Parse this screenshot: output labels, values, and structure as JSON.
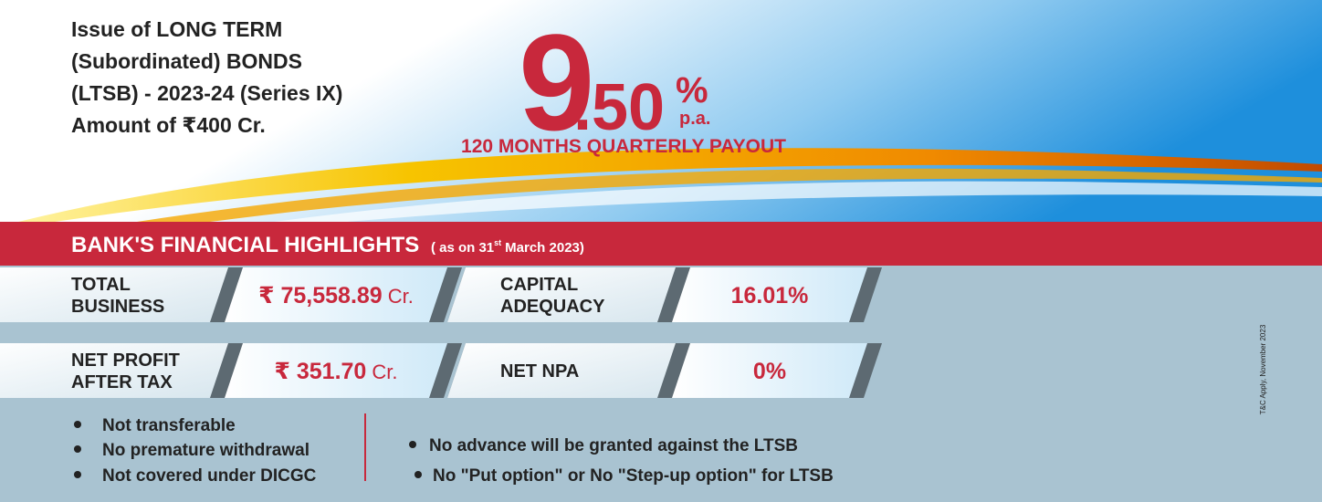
{
  "header": {
    "lines": [
      "Issue of LONG TERM",
      "(Subordinated) BONDS",
      "(LTSB) - 2023-24 (Series IX)",
      "Amount of ₹400 Cr."
    ]
  },
  "rate": {
    "whole": "9",
    "fraction": ".50",
    "percent": "%",
    "period": "p.a.",
    "tenure": "120 MONTHS QUARTERLY PAYOUT"
  },
  "highlights": {
    "title": "BANK'S FINANCIAL HIGHLIGHTS",
    "as_on": "( as on 31",
    "as_on_suffix": "st",
    "as_on_rest": "March 2023)",
    "items": [
      {
        "label": [
          "TOTAL",
          "BUSINESS"
        ],
        "value": "₹ 75,558.89",
        "unit": "Cr."
      },
      {
        "label": [
          "CAPITAL",
          "ADEQUACY"
        ],
        "value": "16.01%"
      },
      {
        "label": [
          "NET PROFIT",
          "AFTER TAX"
        ],
        "value": "₹ 351.70",
        "unit": "Cr."
      },
      {
        "label": [
          "NET NPA"
        ],
        "value": "0%"
      }
    ]
  },
  "features": {
    "left": [
      "Not transferable",
      "No premature withdrawal",
      "Not covered under DICGC"
    ],
    "right": [
      "No advance will be granted against the LTSB",
      "No \"Put option\" or  No \"Step-up option\" for LTSB"
    ]
  },
  "footnote": "T&C Apply, November 2023"
}
